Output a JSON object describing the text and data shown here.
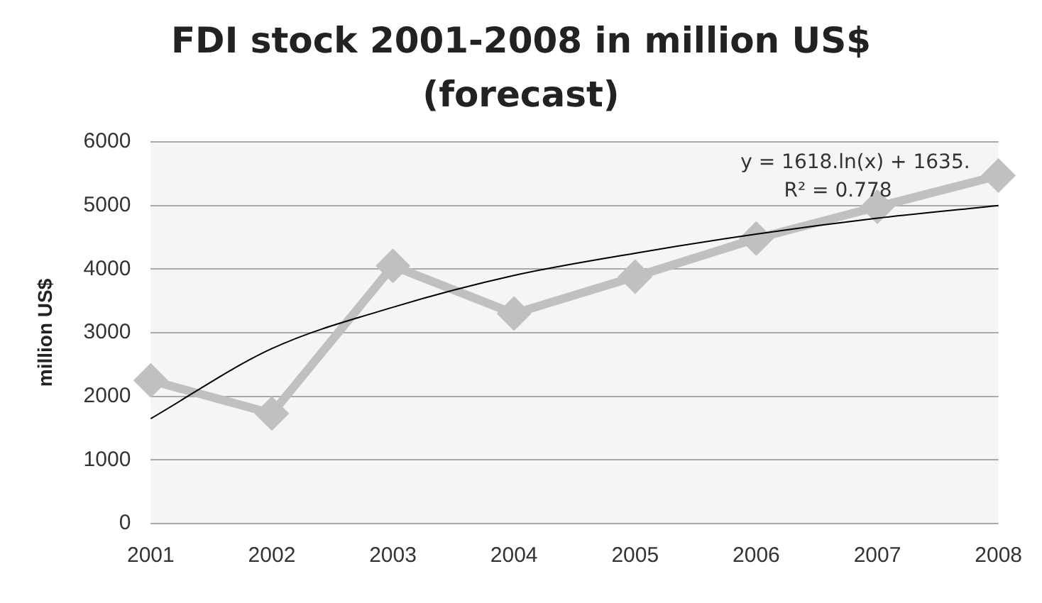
{
  "chart_data": {
    "type": "line",
    "title": "FDI stock 2001-2008 in million US$\n(forecast)",
    "ylabel": "million US$",
    "categories": [
      "2001",
      "2002",
      "2003",
      "2004",
      "2005",
      "2006",
      "2007",
      "2008"
    ],
    "series": [
      {
        "color": "#c0c0c0",
        "values": [
          2250,
          1730,
          4050,
          3300,
          3880,
          4480,
          4980,
          5470
        ],
        "marker": "diamond"
      },
      {
        "type": "line",
        "color": "#000000",
        "values": [
          1650,
          2750,
          3400,
          3900,
          4250,
          4550,
          4800,
          5000
        ],
        "marker": "none"
      }
    ],
    "ylim": [
      0,
      6000
    ],
    "yticks": [
      0,
      1000,
      2000,
      3000,
      4000,
      5000,
      6000
    ],
    "grid": "y",
    "legend": false,
    "annotations": [
      "y = 1618.ln(x) + 1635.",
      "R² = 0.778"
    ]
  }
}
